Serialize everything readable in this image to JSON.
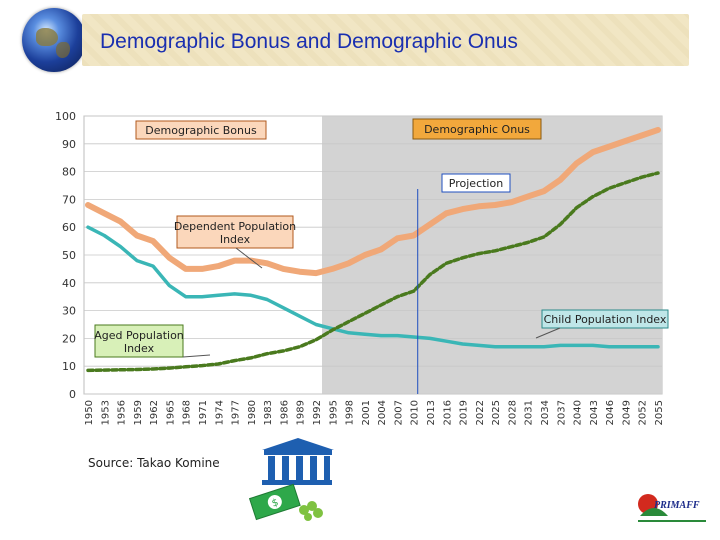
{
  "header": {
    "title": "Demographic Bonus and Demographic Onus"
  },
  "source_text": "Source: Takao Komine",
  "logo_text": "PRIMAFF",
  "icons": {
    "globe": "globe-icon",
    "bank": "bank-money-icon",
    "logo": "primaff-logo-icon"
  },
  "colors": {
    "dependent": "#f0a878",
    "child": "#3ab6b6",
    "aged": "#4a7a1e",
    "shade": "#d3d3d3",
    "title": "#1a2fb0"
  },
  "chart_data": {
    "type": "line",
    "title": "",
    "xlabel": "",
    "ylabel": "",
    "ylim": [
      0,
      100
    ],
    "y_ticks": [
      "0",
      "10",
      "20",
      "30",
      "40",
      "50",
      "60",
      "70",
      "80",
      "90",
      "100"
    ],
    "x": [
      "1950",
      "1953",
      "1956",
      "1959",
      "1962",
      "1965",
      "1968",
      "1971",
      "1974",
      "1977",
      "1980",
      "1983",
      "1986",
      "1989",
      "1992",
      "1995",
      "1998",
      "2001",
      "2004",
      "2007",
      "2010",
      "2013",
      "2016",
      "2019",
      "2022",
      "2025",
      "2028",
      "2031",
      "2034",
      "2037",
      "2040",
      "2043",
      "2046",
      "2049",
      "2052",
      "2055"
    ],
    "shaded_from": "1992",
    "projection_from": "2010",
    "series": [
      {
        "name": "Dependent Population Index",
        "values": [
          68,
          65,
          62,
          57,
          55,
          49,
          45,
          45,
          46,
          48,
          48,
          47,
          45,
          44,
          43.5,
          45,
          47,
          50,
          52,
          56,
          57,
          61,
          65,
          66.5,
          67.5,
          68,
          69,
          71,
          73,
          77,
          83,
          87,
          89,
          91,
          93,
          95
        ]
      },
      {
        "name": "Child Population Index",
        "values": [
          60,
          57,
          53,
          48,
          46,
          39,
          35,
          35,
          35.5,
          36,
          35.5,
          34,
          31,
          28,
          25,
          23.5,
          22,
          21.5,
          21,
          21,
          20.5,
          20,
          19,
          18,
          17.5,
          17,
          17,
          17,
          17,
          17.5,
          17.5,
          17.5,
          17,
          17,
          17,
          17
        ]
      },
      {
        "name": "Aged Population Index",
        "values": [
          8.5,
          8.6,
          8.7,
          8.8,
          9,
          9.3,
          9.8,
          10.2,
          10.8,
          12,
          13,
          14.5,
          15.5,
          17,
          19.5,
          23,
          26,
          29,
          32,
          35,
          37,
          43,
          47,
          49,
          50.5,
          51.5,
          53,
          54.5,
          56.5,
          61,
          67,
          71,
          74,
          76,
          78,
          79.5
        ]
      }
    ],
    "annotations": [
      {
        "text": "Demographic Bonus",
        "style": "peach"
      },
      {
        "text": "Demographic Onus",
        "style": "gold"
      },
      {
        "text": "Projection",
        "style": "blue"
      },
      {
        "text": "Dependent Population Index",
        "style": "peach"
      },
      {
        "text": "Child Population Index",
        "style": "teal"
      },
      {
        "text": "Aged Population Index",
        "style": "green"
      }
    ]
  }
}
